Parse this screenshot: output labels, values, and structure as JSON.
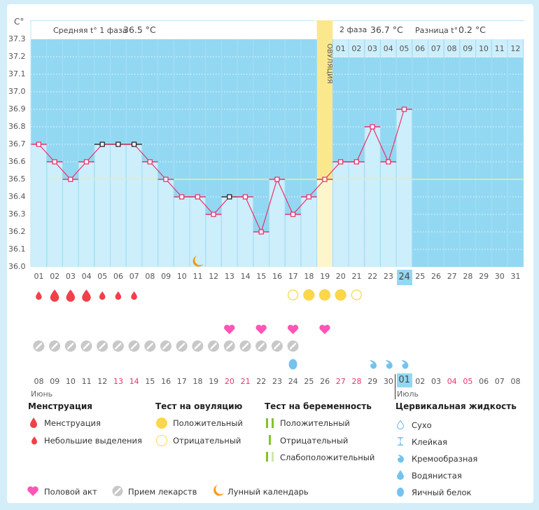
{
  "chart_data": {
    "type": "line",
    "y_unit_label": "C°",
    "ylim": [
      36.0,
      37.3
    ],
    "y_ticks": [
      "37.3",
      "37.2",
      "37.1",
      "37.0",
      "36.9",
      "36.8",
      "36.7",
      "36.6",
      "36.5",
      "36.4",
      "36.3",
      "36.2",
      "36.1",
      "36.0"
    ],
    "x_labels": [
      "01",
      "02",
      "03",
      "04",
      "05",
      "06",
      "07",
      "08",
      "09",
      "10",
      "11",
      "12",
      "13",
      "14",
      "15",
      "16",
      "17",
      "18",
      "19",
      "20",
      "21",
      "22",
      "23",
      "24",
      "25",
      "26",
      "27",
      "28",
      "29",
      "30",
      "31"
    ],
    "today_index": 23,
    "temperatures": [
      36.7,
      36.6,
      36.5,
      36.6,
      36.7,
      36.7,
      36.7,
      36.6,
      36.5,
      36.4,
      36.4,
      36.3,
      36.4,
      36.4,
      36.2,
      36.5,
      36.3,
      36.4,
      36.5,
      36.6,
      36.6,
      36.8,
      36.6,
      36.9
    ],
    "excluded_points": [
      4,
      5,
      6,
      12
    ],
    "coverline": 36.5,
    "ovulation_day_index": 18,
    "ovulation_label": "ОВУЛЯЦИЯ",
    "phase1_label": "Средняя t° 1 фаза",
    "phase1_value": "36.5 °C",
    "phase2_label": "2 фаза",
    "phase2_value": "36.7 °C",
    "diff_label": "Разница t°",
    "diff_value": "0.2 °C",
    "luteal_day_labels": [
      "01",
      "02",
      "03",
      "04",
      "05",
      "06",
      "07",
      "08",
      "09",
      "10",
      "11",
      "12"
    ],
    "moon_day_index": 10,
    "menstruation": [
      "light",
      "heavy",
      "heavy",
      "heavy",
      "light",
      "light",
      "light"
    ],
    "ovulation_tests": {
      "16": "negative",
      "17": "positive",
      "18": "positive",
      "19": "positive",
      "20": "negative"
    },
    "intercourse_days": [
      12,
      14,
      16,
      18
    ],
    "medication_days": [
      0,
      1,
      2,
      3,
      4,
      5,
      6,
      7,
      8,
      9,
      10,
      11,
      12,
      13,
      14,
      15,
      16
    ],
    "cervical_fluid": {
      "16": "egg_white",
      "21": "creamy",
      "22": "creamy",
      "23": "creamy"
    },
    "calendar_labels": [
      "08",
      "09",
      "10",
      "11",
      "12",
      "13",
      "14",
      "15",
      "16",
      "17",
      "18",
      "19",
      "20",
      "21",
      "22",
      "23",
      "24",
      "25",
      "26",
      "27",
      "28",
      "29",
      "30",
      "01",
      "02",
      "03",
      "04",
      "05",
      "06",
      "07",
      "08"
    ],
    "calendar_red": [
      5,
      6,
      12,
      13,
      19,
      20,
      26,
      27
    ],
    "calendar_highlight_index": 23,
    "month1": "Июнь",
    "month2": "Июль"
  },
  "colors": {
    "bg_sky": "#93d8f2",
    "bar_fill": "#cdeefb",
    "line": "#e8336a",
    "coverline": "#f3eaa0",
    "ovulation": "#fce88c",
    "drop": "#f0404a",
    "heart": "#ff55b5",
    "pill": "#c8c8c8",
    "moon": "#f5960f",
    "test_yellow": "#fdd64a",
    "fluid": "#74c3ee",
    "preg_green": "#86c22a",
    "preg_light": "#cfe8a8"
  },
  "legend": {
    "menstruation_title": "Менструация",
    "menstruation_heavy": "Менструация",
    "menstruation_light": "Небольшие выделения",
    "ovulation_title": "Тест на овуляцию",
    "ovulation_pos": "Положительный",
    "ovulation_neg": "Отрицательный",
    "pregnancy_title": "Тест на беременность",
    "pregnancy_pos": "Положительный",
    "pregnancy_neg": "Отрицательный",
    "pregnancy_weak": "Слабоположительный",
    "fluid_title": "Цервикальная жидкость",
    "fluid_dry": "Сухо",
    "fluid_sticky": "Клейкая",
    "fluid_creamy": "Кремообразная",
    "fluid_watery": "Водянистая",
    "fluid_egg": "Яичный белок",
    "intercourse": "Половой акт",
    "medication": "Прием лекарств",
    "moon": "Лунный календарь"
  }
}
